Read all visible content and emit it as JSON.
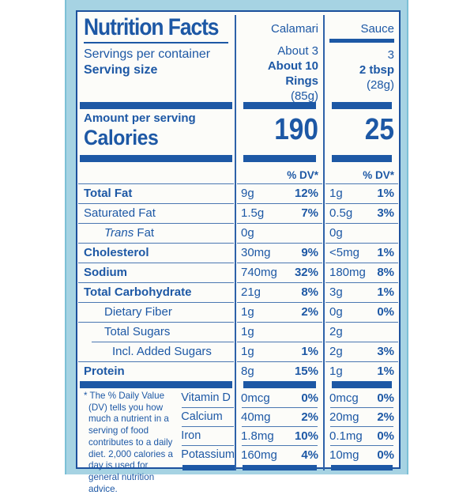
{
  "theme": {
    "accent_blue": "#1d58a5",
    "rule_blue": "#4a77b2",
    "package_strip_blue": "#a6d3e3",
    "label_background": "#fcfcf9"
  },
  "label": {
    "title": "Nutrition Facts",
    "servings_per_container_label": "Servings per container",
    "serving_size_label": "Serving size",
    "amount_per_serving_label": "Amount per serving",
    "calories_label": "Calories",
    "dv_header": "% DV*",
    "columns": [
      {
        "name": "Calamari",
        "servings": "About 3",
        "serving_size": "About 10 Rings",
        "serving_weight": "(85g)",
        "calories": "190"
      },
      {
        "name": "Sauce",
        "servings": "3",
        "serving_size": "2 tbsp",
        "serving_weight": "(28g)",
        "calories": "25"
      }
    ],
    "nutrients": [
      {
        "label": "Total Fat",
        "bold": true,
        "indent": 0,
        "calamari": {
          "amount": "9g",
          "dv": "12%"
        },
        "sauce": {
          "amount": "1g",
          "dv": "1%"
        }
      },
      {
        "label": "Saturated Fat",
        "bold": false,
        "indent": 0,
        "calamari": {
          "amount": "1.5g",
          "dv": "7%"
        },
        "sauce": {
          "amount": "0.5g",
          "dv": "3%"
        }
      },
      {
        "label": "Trans Fat",
        "italic_word": "Trans",
        "bold": false,
        "indent": 1,
        "calamari": {
          "amount": "0g",
          "dv": ""
        },
        "sauce": {
          "amount": "0g",
          "dv": ""
        }
      },
      {
        "label": "Cholesterol",
        "bold": true,
        "indent": 0,
        "calamari": {
          "amount": "30mg",
          "dv": "9%"
        },
        "sauce": {
          "amount": "<5mg",
          "dv": "1%"
        }
      },
      {
        "label": "Sodium",
        "bold": true,
        "indent": 0,
        "calamari": {
          "amount": "740mg",
          "dv": "32%"
        },
        "sauce": {
          "amount": "180mg",
          "dv": "8%"
        }
      },
      {
        "label": "Total Carbohydrate",
        "bold": true,
        "indent": 0,
        "calamari": {
          "amount": "21g",
          "dv": "8%"
        },
        "sauce": {
          "amount": "3g",
          "dv": "1%"
        }
      },
      {
        "label": "Dietary Fiber",
        "bold": false,
        "indent": 1,
        "calamari": {
          "amount": "1g",
          "dv": "2%"
        },
        "sauce": {
          "amount": "0g",
          "dv": "0%"
        }
      },
      {
        "label": "Total Sugars",
        "bold": false,
        "indent": 1,
        "calamari": {
          "amount": "1g",
          "dv": ""
        },
        "sauce": {
          "amount": "2g",
          "dv": ""
        }
      },
      {
        "label": "Incl. Added Sugars",
        "bold": false,
        "indent": 2,
        "indent_rule": true,
        "calamari": {
          "amount": "1g",
          "dv": "1%"
        },
        "sauce": {
          "amount": "2g",
          "dv": "3%"
        }
      },
      {
        "label": "Protein",
        "bold": true,
        "indent": 0,
        "calamari": {
          "amount": "8g",
          "dv": "15%"
        },
        "sauce": {
          "amount": "1g",
          "dv": "1%"
        }
      }
    ],
    "micronutrients": [
      {
        "label": "Vitamin D",
        "calamari": {
          "amount": "0mcg",
          "dv": "0%"
        },
        "sauce": {
          "amount": "0mcg",
          "dv": "0%"
        }
      },
      {
        "label": "Calcium",
        "calamari": {
          "amount": "40mg",
          "dv": "2%"
        },
        "sauce": {
          "amount": "20mg",
          "dv": "2%"
        }
      },
      {
        "label": "Iron",
        "calamari": {
          "amount": "1.8mg",
          "dv": "10%"
        },
        "sauce": {
          "amount": "0.1mg",
          "dv": "0%"
        }
      },
      {
        "label": "Potassium",
        "calamari": {
          "amount": "160mg",
          "dv": "4%"
        },
        "sauce": {
          "amount": "10mg",
          "dv": "0%"
        }
      }
    ],
    "footnote": "* The % Daily Value (DV) tells you how much a nutrient in a serving of food contributes to a daily diet. 2,000 calories a day is used for general nutrition advice."
  }
}
